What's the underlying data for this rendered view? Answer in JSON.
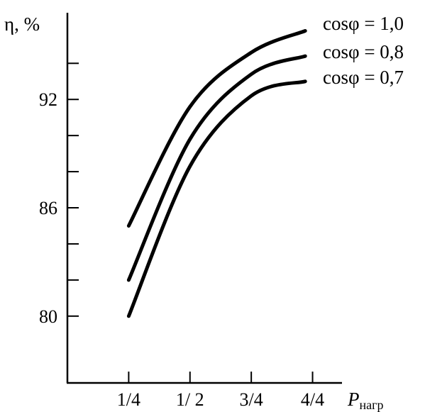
{
  "chart_data": {
    "type": "line",
    "title": "",
    "ylabel": "η, %",
    "xlabel": {
      "main": "P",
      "subscript": "нагр"
    },
    "x_categories": [
      "1/4",
      "1/ 2",
      "3/4",
      "4/4"
    ],
    "x_values": [
      0.25,
      0.5,
      0.75,
      1.0
    ],
    "y_ticks": [
      {
        "value": 80,
        "label": "80"
      },
      {
        "value": 82,
        "label": ""
      },
      {
        "value": 84,
        "label": ""
      },
      {
        "value": 86,
        "label": "86"
      },
      {
        "value": 88,
        "label": ""
      },
      {
        "value": 90,
        "label": ""
      },
      {
        "value": 92,
        "label": "92"
      },
      {
        "value": 94,
        "label": ""
      }
    ],
    "ylim": [
      76.3,
      96.8
    ],
    "xlim": [
      0.0,
      1.12
    ],
    "grid": false,
    "series": [
      {
        "name": "cosφ = 1,0",
        "points": [
          [
            0.25,
            85.0
          ],
          [
            0.5,
            91.6
          ],
          [
            0.75,
            94.6
          ],
          [
            0.97,
            95.8
          ]
        ]
      },
      {
        "name": "cosφ = 0,8",
        "points": [
          [
            0.25,
            82.0
          ],
          [
            0.5,
            89.8
          ],
          [
            0.75,
            93.4
          ],
          [
            0.97,
            94.4
          ]
        ]
      },
      {
        "name": "cosφ = 0,7",
        "points": [
          [
            0.25,
            80.0
          ],
          [
            0.5,
            88.3
          ],
          [
            0.75,
            92.2
          ],
          [
            0.97,
            93.0
          ]
        ]
      }
    ]
  }
}
